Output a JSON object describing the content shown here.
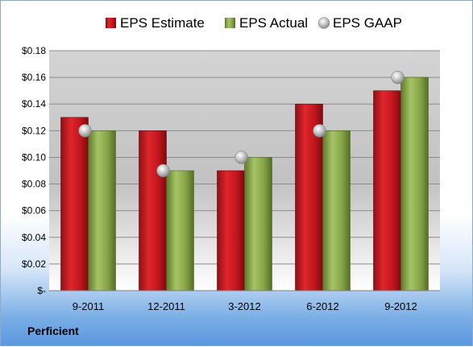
{
  "chart_data": {
    "type": "bar",
    "categories": [
      "9-2011",
      "12-2011",
      "3-2012",
      "6-2012",
      "9-2012"
    ],
    "series": [
      {
        "name": "EPS Estimate",
        "kind": "bar",
        "color": "#c0161d",
        "values": [
          0.13,
          0.12,
          0.09,
          0.14,
          0.15
        ]
      },
      {
        "name": "EPS Actual",
        "kind": "bar",
        "color": "#8aa84a",
        "values": [
          0.12,
          0.09,
          0.1,
          0.12,
          0.16
        ]
      },
      {
        "name": "EPS GAAP",
        "kind": "marker",
        "color": "#b9b9b9",
        "values": [
          0.12,
          0.09,
          0.1,
          0.12,
          0.16
        ]
      }
    ],
    "y_ticks": [
      "$-",
      "$0.02",
      "$0.04",
      "$0.06",
      "$0.08",
      "$0.10",
      "$0.12",
      "$0.14",
      "$0.16",
      "$0.18"
    ],
    "ylim": [
      0,
      0.18
    ],
    "grid": true,
    "legend_position": "top"
  },
  "company": "Perficient"
}
